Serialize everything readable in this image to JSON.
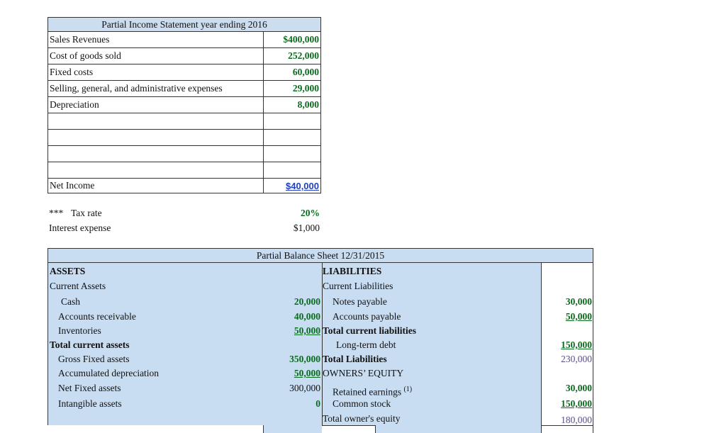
{
  "income_statement": {
    "title": "Partial Income Statement year ending 2016",
    "rows": [
      {
        "label": "Sales Revenues",
        "value": "$400,000"
      },
      {
        "label": "Cost of goods sold",
        "value": "252,000"
      },
      {
        "label": "Fixed costs",
        "value": "60,000"
      },
      {
        "label": "Selling, general, and administrative expenses",
        "value": "29,000"
      },
      {
        "label": "Depreciation",
        "value": "8,000"
      }
    ],
    "net_income_label": "Net Income",
    "net_income_value": "$40,000"
  },
  "notes": {
    "tax_marker": "***",
    "tax_label": "Tax rate",
    "tax_value": "20%",
    "interest_label": "Interest expense",
    "interest_value": "$1,000"
  },
  "balance_sheet": {
    "title": "Partial Balance Sheet 12/31/2015",
    "assets": {
      "heading": "ASSETS",
      "current_heading": "Current Assets",
      "cash_label": "Cash",
      "cash_value": "20,000",
      "ar_label": "Accounts receivable",
      "ar_value": "40,000",
      "inv_label": "Inventories",
      "inv_value": "50,000",
      "total_current_label": "Total current assets",
      "gross_fixed_label": "Gross Fixed assets",
      "gross_fixed_value": "350,000",
      "accum_dep_label": "Accumulated depreciation",
      "accum_dep_value": "50,000",
      "net_fixed_label": "Net Fixed assets",
      "net_fixed_value": "300,000",
      "intangible_label": "Intangible assets",
      "intangible_value": "0"
    },
    "liabilities": {
      "heading": "LIABILITIES",
      "current_heading": "Current Liabilities",
      "notes_label": "Notes payable",
      "notes_value": "30,000",
      "ap_label": "Accounts payable",
      "ap_value": "50,000",
      "total_current_label": "Total current liabilities",
      "ltd_label": "Long-term debt",
      "ltd_value": "150,000",
      "total_liab_label": "Total Liabilities",
      "total_liab_value": "230,000",
      "equity_heading": "OWNERS’ EQUITY",
      "retained_label": "Retained earnings",
      "retained_note": "(1)",
      "retained_value": "30,000",
      "common_label": "Common stock",
      "common_value": "150,000",
      "total_equity_label": "Total owner's equity",
      "total_equity_value": "180,000"
    }
  }
}
